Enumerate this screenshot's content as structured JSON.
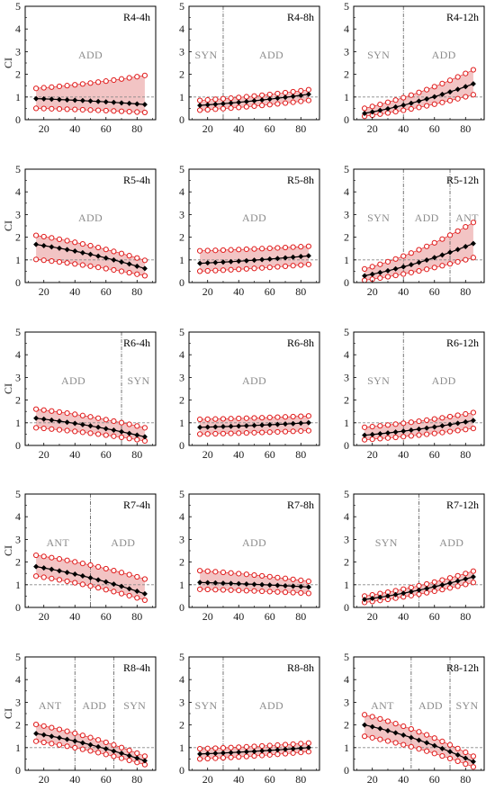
{
  "colors": {
    "band_fill": "#f2c4c4",
    "bound_marker": "#e01b1b",
    "mean_line": "#000000",
    "reference_line": "#888888",
    "divider_line": "#555555",
    "region_label": "#8c8c8c"
  },
  "chart_data": {
    "type": "line",
    "layout": "grid 5 rows x 3 columns",
    "xticks": [
      20,
      40,
      60,
      80
    ],
    "yticks": [
      0,
      1,
      2,
      3,
      4,
      5
    ],
    "ylabel": "CI",
    "xlim": [
      8,
      92
    ],
    "ylim": [
      0,
      5
    ],
    "reference_y": 1,
    "x": [
      15,
      20,
      25,
      30,
      35,
      40,
      45,
      50,
      55,
      60,
      65,
      70,
      75,
      80,
      85
    ],
    "marker_styles": {
      "mean": "black diamond",
      "bounds": "red open circle"
    },
    "panels": [
      {
        "title": "R4-4h",
        "mean_range": [
          0.93,
          0.67
        ],
        "lower_range": [
          0.5,
          0.32
        ],
        "upper_range": [
          1.38,
          1.95
        ],
        "dividers": [],
        "regions": [
          "ADD"
        ]
      },
      {
        "title": "R4-8h",
        "mean_range": [
          0.63,
          1.12
        ],
        "lower_range": [
          0.42,
          0.85
        ],
        "upper_range": [
          0.85,
          1.32
        ],
        "dividers": [
          30
        ],
        "regions": [
          "SYN",
          "ADD"
        ]
      },
      {
        "title": "R4-12h",
        "mean_range": [
          0.28,
          1.58
        ],
        "lower_range": [
          0.15,
          1.1
        ],
        "upper_range": [
          0.5,
          2.2
        ],
        "dividers": [
          40
        ],
        "regions": [
          "SYN",
          "ADD"
        ]
      },
      {
        "title": "R5-4h",
        "mean_range": [
          1.68,
          0.62
        ],
        "lower_range": [
          1.02,
          0.3
        ],
        "upper_range": [
          2.08,
          0.98
        ],
        "dividers": [],
        "regions": [
          "ADD"
        ]
      },
      {
        "title": "R5-8h",
        "mean_range": [
          0.85,
          1.18
        ],
        "lower_range": [
          0.5,
          0.8
        ],
        "upper_range": [
          1.4,
          1.6
        ],
        "dividers": [],
        "regions": [
          "ADD"
        ]
      },
      {
        "title": "R5-12h",
        "mean_range": [
          0.3,
          1.72
        ],
        "lower_range": [
          0.1,
          1.1
        ],
        "upper_range": [
          0.6,
          2.65
        ],
        "dividers": [
          40,
          70
        ],
        "regions": [
          "SYN",
          "ADD",
          "ANT"
        ]
      },
      {
        "title": "R6-4h",
        "mean_range": [
          1.2,
          0.38
        ],
        "lower_range": [
          0.78,
          0.2
        ],
        "upper_range": [
          1.6,
          0.78
        ],
        "dividers": [
          70
        ],
        "regions": [
          "ADD",
          "SYN"
        ]
      },
      {
        "title": "R6-8h",
        "mean_range": [
          0.8,
          1.0
        ],
        "lower_range": [
          0.5,
          0.65
        ],
        "upper_range": [
          1.15,
          1.3
        ],
        "dividers": [],
        "regions": [
          "ADD"
        ]
      },
      {
        "title": "R6-12h",
        "mean_range": [
          0.45,
          1.1
        ],
        "lower_range": [
          0.25,
          0.75
        ],
        "upper_range": [
          0.8,
          1.45
        ],
        "dividers": [
          40
        ],
        "regions": [
          "SYN",
          "ADD"
        ]
      },
      {
        "title": "R7-4h",
        "mean_range": [
          1.8,
          0.6
        ],
        "lower_range": [
          1.38,
          0.32
        ],
        "upper_range": [
          2.3,
          1.25
        ],
        "dividers": [
          50
        ],
        "regions": [
          "ANT",
          "ADD"
        ]
      },
      {
        "title": "R7-8h",
        "mean_range": [
          1.1,
          0.9
        ],
        "lower_range": [
          0.8,
          0.62
        ],
        "upper_range": [
          1.62,
          1.15
        ],
        "dividers": [],
        "regions": [
          "ADD"
        ]
      },
      {
        "title": "R7-12h",
        "mean_range": [
          0.35,
          1.35
        ],
        "lower_range": [
          0.22,
          1.1
        ],
        "upper_range": [
          0.5,
          1.6
        ],
        "dividers": [
          50
        ],
        "regions": [
          "SYN",
          "ADD"
        ]
      },
      {
        "title": "R8-4h",
        "mean_range": [
          1.62,
          0.42
        ],
        "lower_range": [
          1.28,
          0.25
        ],
        "upper_range": [
          2.02,
          0.62
        ],
        "dividers": [
          40,
          65
        ],
        "regions": [
          "ANT",
          "ADD",
          "SYN"
        ]
      },
      {
        "title": "R8-8h",
        "mean_range": [
          0.72,
          1.0
        ],
        "lower_range": [
          0.5,
          0.82
        ],
        "upper_range": [
          0.95,
          1.2
        ],
        "dividers": [
          30
        ],
        "regions": [
          "SYN",
          "ADD"
        ]
      },
      {
        "title": "R8-12h",
        "mean_range": [
          2.0,
          0.38
        ],
        "lower_range": [
          1.5,
          0.15
        ],
        "upper_range": [
          2.45,
          0.62
        ],
        "dividers": [
          45,
          70
        ],
        "regions": [
          "ANT",
          "ADD",
          "SYN"
        ]
      }
    ]
  }
}
